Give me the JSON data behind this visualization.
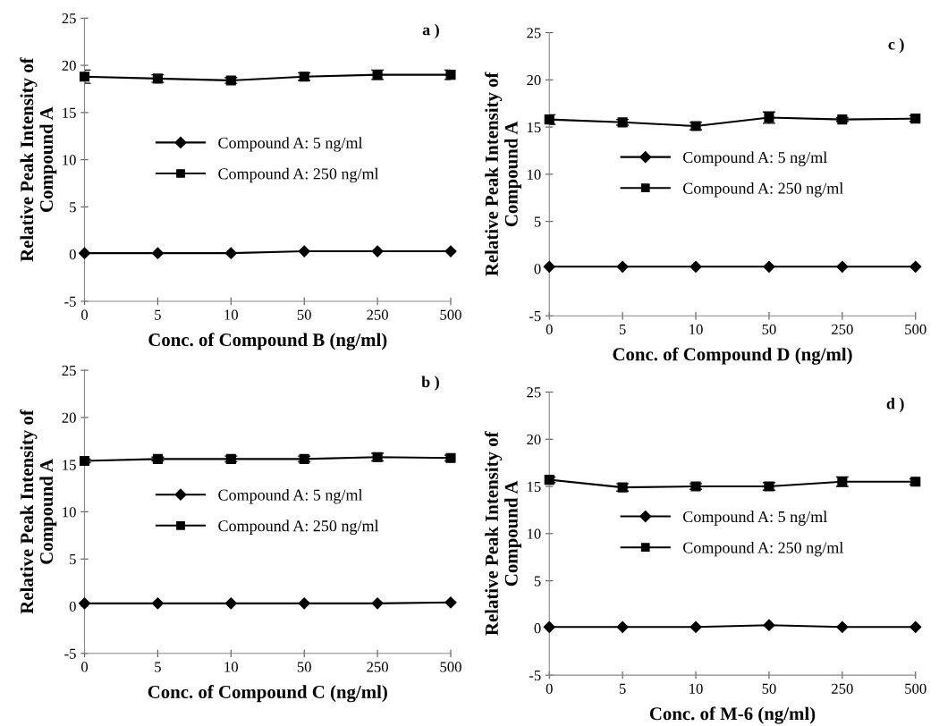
{
  "chart_data": [
    {
      "type": "line",
      "ylabel": "Relative Peak Intensity of\nCompound A",
      "xlabel": "Conc. of Compound B (ng/ml)",
      "annotations": [
        "a )"
      ],
      "categories": [
        "0",
        "5",
        "10",
        "50",
        "250",
        "500"
      ],
      "ylim": [
        -5,
        25
      ],
      "yticks": [
        -5,
        0,
        5,
        10,
        15,
        20,
        25
      ],
      "grid": false,
      "legend": "center",
      "series": [
        {
          "name": "Compound A: 5 ng/ml",
          "color": "#000000",
          "marker": "diamond",
          "values": [
            0.1,
            0.1,
            0.1,
            0.3,
            0.3,
            0.3
          ]
        },
        {
          "name": "Compound A: 250 ng/ml",
          "color": "#000000",
          "marker": "square",
          "values": [
            18.8,
            18.6,
            18.4,
            18.8,
            19.0,
            19.0
          ],
          "errors": [
            0.7,
            0.4,
            0.3,
            0.4,
            0.5,
            0.5
          ]
        }
      ]
    },
    {
      "type": "line",
      "ylabel": "Relative Peak Intensity of\nCompound A",
      "xlabel": "Conc. of Compound D (ng/ml)",
      "annotations": [
        "c )"
      ],
      "categories": [
        "0",
        "5",
        "10",
        "50",
        "250",
        "500"
      ],
      "ylim": [
        -5,
        25
      ],
      "yticks": [
        -5,
        0,
        5,
        10,
        15,
        20,
        25
      ],
      "grid": false,
      "legend": "center",
      "series": [
        {
          "name": "Compound A: 5 ng/ml",
          "color": "#000000",
          "marker": "diamond",
          "values": [
            0.2,
            0.2,
            0.2,
            0.2,
            0.2,
            0.2
          ]
        },
        {
          "name": "Compound A: 250 ng/ml",
          "color": "#000000",
          "marker": "square",
          "values": [
            15.8,
            15.5,
            15.1,
            16.0,
            15.8,
            15.9
          ],
          "errors": [
            0.5,
            0.3,
            0.4,
            0.6,
            0.2,
            0.3
          ]
        }
      ]
    },
    {
      "type": "line",
      "ylabel": "Relative Peak Intensity of\nCompound A",
      "xlabel": "Conc. of Compound C (ng/ml)",
      "annotations": [
        "b )"
      ],
      "categories": [
        "0",
        "5",
        "10",
        "50",
        "250",
        "500"
      ],
      "ylim": [
        -5,
        25
      ],
      "yticks": [
        -5,
        0,
        5,
        10,
        15,
        20,
        25
      ],
      "grid": false,
      "legend": "center",
      "series": [
        {
          "name": "Compound A: 5 ng/ml",
          "color": "#000000",
          "marker": "diamond",
          "values": [
            0.3,
            0.3,
            0.3,
            0.3,
            0.3,
            0.4
          ]
        },
        {
          "name": "Compound A: 250 ng/ml",
          "color": "#000000",
          "marker": "square",
          "values": [
            15.4,
            15.6,
            15.6,
            15.6,
            15.8,
            15.7
          ],
          "errors": [
            0.2,
            0.2,
            0.3,
            0.3,
            0.4,
            0.3
          ]
        }
      ]
    },
    {
      "type": "line",
      "ylabel": "Relative Peak Intensity of\nCompound A",
      "xlabel": "Conc. of M-6 (ng/ml)",
      "annotations": [
        "d )"
      ],
      "categories": [
        "0",
        "5",
        "10",
        "50",
        "250",
        "500"
      ],
      "ylim": [
        -5,
        25
      ],
      "yticks": [
        -5,
        0,
        5,
        10,
        15,
        20,
        25
      ],
      "grid": false,
      "legend": "center",
      "series": [
        {
          "name": "Compound A: 5 ng/ml",
          "color": "#000000",
          "marker": "diamond",
          "values": [
            0.1,
            0.1,
            0.1,
            0.3,
            0.1,
            0.1
          ]
        },
        {
          "name": "Compound A: 250 ng/ml",
          "color": "#000000",
          "marker": "square",
          "values": [
            15.7,
            14.9,
            15.0,
            15.0,
            15.5,
            15.5
          ],
          "errors": [
            0.3,
            0.4,
            0.3,
            0.4,
            0.5,
            0.3
          ]
        }
      ]
    }
  ]
}
